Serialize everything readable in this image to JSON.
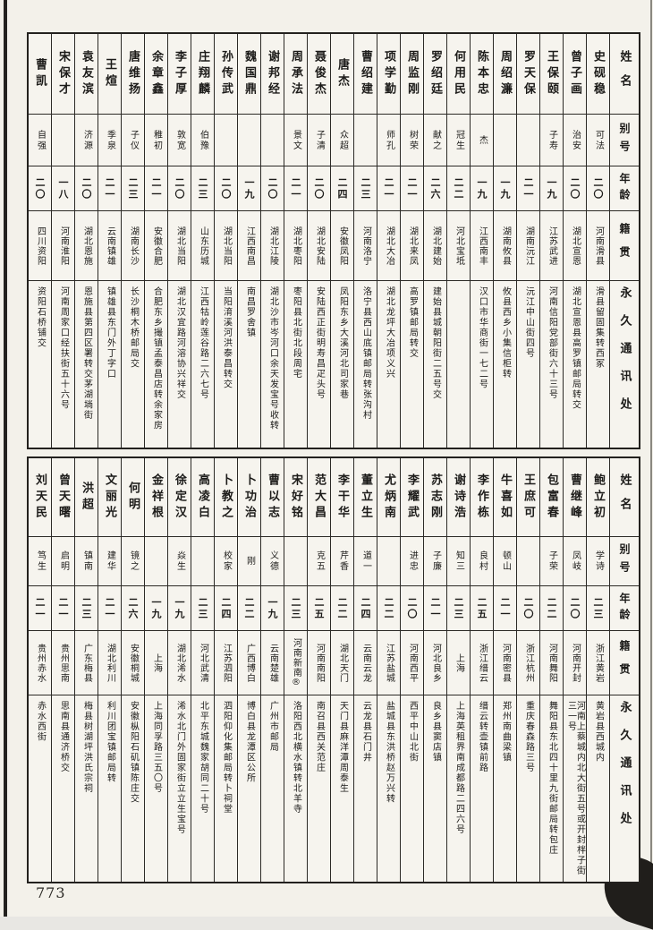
{
  "page": {
    "number": "773"
  },
  "headers": [
    "姓名",
    "别号",
    "年龄",
    "籍贯",
    "永久通讯处"
  ],
  "tables": [
    {
      "entries": [
        {
          "name": "史砚稳",
          "alias": "可法",
          "age": "二〇",
          "origin": "河南滑县",
          "address": "滑县留固集转西冢"
        },
        {
          "name": "曾子画",
          "alias": "治安",
          "age": "二〇",
          "origin": "湖北宣恩",
          "address": "湖北宣恩县高罗镇邮局转交"
        },
        {
          "name": "王保颐",
          "alias": "子寿",
          "age": "一九",
          "origin": "江苏武进",
          "address": "河南信阳党部街六十三号"
        },
        {
          "name": "罗天保",
          "alias": "",
          "age": "二一",
          "origin": "湖南沅江",
          "address": "沅江中山街四号"
        },
        {
          "name": "周绍濂",
          "alias": "",
          "age": "一九",
          "origin": "湖南攸县",
          "address": "攸县西乡小集信柜转"
        },
        {
          "name": "陈本忠",
          "alias": "杰",
          "age": "一九",
          "origin": "江西南丰",
          "address": "汉口市华商街一七二号"
        },
        {
          "name": "何用民",
          "alias": "冠生",
          "age": "二二",
          "origin": "河北宝坻",
          "address": ""
        },
        {
          "name": "罗绍廷",
          "alias": "献之",
          "age": "二六",
          "origin": "湖北建始",
          "address": "建始县城朝阳街二五号交"
        },
        {
          "name": "周监刚",
          "alias": "树荣",
          "age": "二一",
          "origin": "湖北来凤",
          "address": "高罗镇邮局转交"
        },
        {
          "name": "项学勤",
          "alias": "师孔",
          "age": "二一",
          "origin": "湖北大冶",
          "address": "湖北龙坪大冶项义兴"
        },
        {
          "name": "曹绍建",
          "alias": "",
          "age": "二三",
          "origin": "河南洛宁",
          "address": "洛宁县西山底镇邮局转张沟村"
        },
        {
          "name": "唐杰",
          "alias": "众超",
          "age": "二四",
          "origin": "安徽凤阳",
          "address": "凤阳东乡大溪河北司家巷"
        },
        {
          "name": "聂俊杰",
          "alias": "子清",
          "age": "二〇",
          "origin": "湖北安陆",
          "address": "安陆西正街明寿昌疋头号"
        },
        {
          "name": "周承法",
          "alias": "景文",
          "age": "二一",
          "origin": "湖北枣阳",
          "address": "枣阳县北街北段周宅"
        },
        {
          "name": "谢邦经",
          "alias": "",
          "age": "二〇",
          "origin": "湖北江陵",
          "address": "湖北沙市岑河口余天发宝号收转"
        },
        {
          "name": "魏国鼎",
          "alias": "",
          "age": "一九",
          "origin": "江西南昌",
          "address": "南昌罗舍镇"
        },
        {
          "name": "孙传武",
          "alias": "",
          "age": "二〇",
          "origin": "湖北当阳",
          "address": "当阳淯溪河洪泰昌转交"
        },
        {
          "name": "庄翔麟",
          "alias": "伯豫",
          "age": "二三",
          "origin": "山东历城",
          "address": "江西牯岭莲谷路二六七号"
        },
        {
          "name": "李子厚",
          "alias": "敦宽",
          "age": "二〇",
          "origin": "湖北当阳",
          "address": "湖北汉宜路河溶协兴祥交"
        },
        {
          "name": "余章鑫",
          "alias": "稚初",
          "age": "二一",
          "origin": "安徽合肥",
          "address": "合肥东乡撮镇孟泰昌店转余家房"
        },
        {
          "name": "唐维扬",
          "alias": "子仪",
          "age": "二三",
          "origin": "湖南长沙",
          "address": "长沙桐木桥邮局交"
        },
        {
          "name": "王煊",
          "alias": "季泉",
          "age": "二一",
          "origin": "云南镇雄",
          "address": "镇雄县东门外丁字口"
        },
        {
          "name": "袁友滨",
          "alias": "济源",
          "age": "二〇",
          "origin": "湖北恩施",
          "address": "恩施县第四区署转交茅湖埫街"
        },
        {
          "name": "宋保才",
          "alias": "",
          "age": "一八",
          "origin": "河南淮阳",
          "address": "河南周家口经扶街五十六号"
        },
        {
          "name": "曹凯",
          "alias": "自强",
          "age": "二〇",
          "origin": "四川资阳",
          "address": "资阳石桥铺交"
        }
      ]
    },
    {
      "entries": [
        {
          "name": "鲍立初",
          "alias": "学诗",
          "age": "二三",
          "origin": "浙江黄岩",
          "address": "黄岩县西城内"
        },
        {
          "name": "曹继峰",
          "alias": "凤岐",
          "age": "二〇",
          "origin": "河南开封",
          "address": "河南上蔡城内北大街五号或开封柈子街三一号"
        },
        {
          "name": "包富春",
          "alias": "子荣",
          "age": "二二",
          "origin": "河南舞阳",
          "address": "舞阳县东北四十里九街邮局转包庄"
        },
        {
          "name": "王庶可",
          "alias": "",
          "age": "二〇",
          "origin": "浙江杭州",
          "address": "重庆春森路三号"
        },
        {
          "name": "牛喜如",
          "alias": "顿山",
          "age": "二一",
          "origin": "河南密县",
          "address": "郑州南曲梁镇"
        },
        {
          "name": "李作栋",
          "alias": "良村",
          "age": "二五",
          "origin": "浙江缙云",
          "address": "缙云转壶镇前路"
        },
        {
          "name": "谢诗浩",
          "alias": "知三",
          "age": "二三",
          "origin": "上海",
          "address": "上海英租界南成都路二四六号"
        },
        {
          "name": "苏志刚",
          "alias": "子廉",
          "age": "二一",
          "origin": "河北良乡",
          "address": "良乡县窦店镇"
        },
        {
          "name": "李耀武",
          "alias": "进忠",
          "age": "二〇",
          "origin": "河南西平",
          "address": "西平中山北街"
        },
        {
          "name": "尤炳南",
          "alias": "",
          "age": "二二",
          "origin": "江苏盐城",
          "address": "盐城县东洪桥赵万兴转"
        },
        {
          "name": "董立生",
          "alias": "道一",
          "age": "二四",
          "origin": "云南云龙",
          "address": "云龙县石门井"
        },
        {
          "name": "李干华",
          "alias": "芹香",
          "age": "二二",
          "origin": "湖北天门",
          "address": "天门县麻洋潭周泰生"
        },
        {
          "name": "范大昌",
          "alias": "克五",
          "age": "二五",
          "origin": "河南南阳",
          "address": "南召县西关范庄"
        },
        {
          "name": "宋好铭",
          "alias": "",
          "age": "二三",
          "origin": "河南新南®",
          "address": "洛阳西北横水镇转北羊寺"
        },
        {
          "name": "曹以志",
          "alias": "义德",
          "age": "一九",
          "origin": "云南楚雄",
          "address": "广州市邮局"
        },
        {
          "name": "卜功治",
          "alias": "刚",
          "age": "二二",
          "origin": "广西博白",
          "address": "博白县龙潭区公所"
        },
        {
          "name": "卜教之",
          "alias": "校家",
          "age": "二四",
          "origin": "江苏泗阳",
          "address": "泗阳仰化集邮局转卜祠堂"
        },
        {
          "name": "高凌白",
          "alias": "",
          "age": "二三",
          "origin": "河北武清",
          "address": "北平东城魏家胡同二十号"
        },
        {
          "name": "徐定汉",
          "alias": "焱生",
          "age": "一九",
          "origin": "湖北浠水",
          "address": "浠水北门外固家街立立生宝号"
        },
        {
          "name": "金祥根",
          "alias": "",
          "age": "一九",
          "origin": "上海",
          "address": "上海同孚路三五〇号"
        },
        {
          "name": "何明",
          "alias": "镜之",
          "age": "二六",
          "origin": "安徽桐城",
          "address": "安徽枞阳石矶镇陈庄交"
        },
        {
          "name": "文丽光",
          "alias": "建华",
          "age": "二一",
          "origin": "湖北利川",
          "address": "利川团宝镇邮局转"
        },
        {
          "name": "洪超",
          "alias": "镇南",
          "age": "二三",
          "origin": "广东梅县",
          "address": "梅县树湖坪洪氏宗祠"
        },
        {
          "name": "曾天曙",
          "alias": "启明",
          "age": "二一",
          "origin": "贵州思南",
          "address": "思南县通济桥交"
        },
        {
          "name": "刘天民",
          "alias": "笃生",
          "age": "二一",
          "origin": "贵州赤水",
          "address": "赤水西街"
        }
      ]
    }
  ]
}
